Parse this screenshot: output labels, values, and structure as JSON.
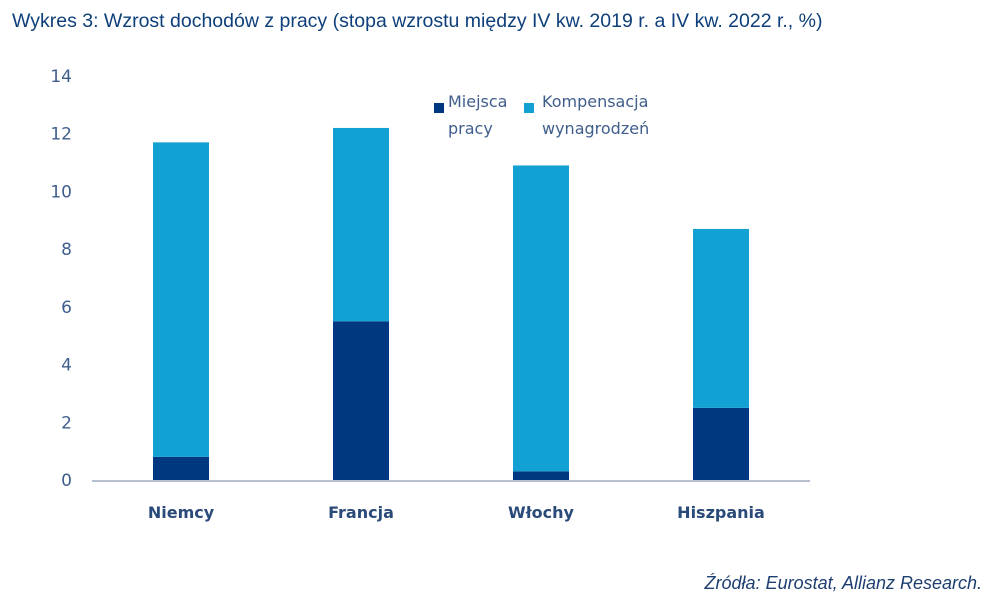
{
  "title": "Wykres 3: Wzrost dochodów z pracy (stopa wzrostu między IV kw. 2019 r. a IV kw. 2022 r., %)",
  "source": "Źródła: Eurostat, Allianz Research.",
  "chart_data": {
    "type": "bar",
    "stacked": true,
    "categories": [
      "Niemcy",
      "Francja",
      "Włochy",
      "Hiszpania"
    ],
    "series": [
      {
        "name": "Miejsca pracy",
        "color": "#003781",
        "values": [
          0.8,
          5.5,
          0.3,
          2.5
        ]
      },
      {
        "name": "Kompensacja wynagrodzeń",
        "color": "#13a0d3",
        "values": [
          10.9,
          6.7,
          10.6,
          6.2
        ]
      }
    ],
    "ylim": [
      0,
      14
    ],
    "yticks": [
      "0",
      "2",
      "4",
      "6",
      "8",
      "10",
      "12",
      "14"
    ],
    "grid": false,
    "legend_position": "top-right",
    "legend_lines": [
      [
        "Miejsca",
        "pracy"
      ],
      [
        "Kompensacja",
        "wynagrodzeń"
      ]
    ]
  }
}
